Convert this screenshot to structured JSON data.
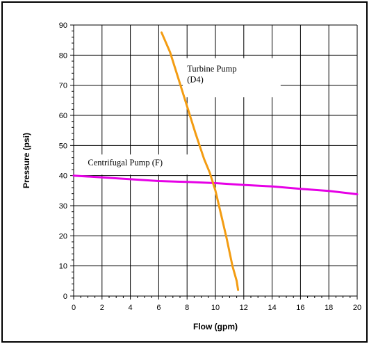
{
  "chart_data": {
    "type": "line",
    "title": "",
    "xlabel": "Flow (gpm)",
    "ylabel": "Pressure (psi)",
    "xlim": [
      0,
      20
    ],
    "ylim": [
      0,
      90
    ],
    "x_ticks": [
      0,
      2,
      4,
      6,
      8,
      10,
      12,
      14,
      16,
      18,
      20
    ],
    "y_ticks": [
      0,
      10,
      20,
      30,
      40,
      50,
      60,
      70,
      80,
      90
    ],
    "grid": true,
    "legend": "none",
    "series": [
      {
        "name": "Centrifugal Pump (F)",
        "color": "#e600e6",
        "x": [
          0,
          2,
          4,
          6,
          8,
          10,
          12,
          14,
          16,
          18,
          20
        ],
        "y": [
          40,
          39.4,
          38.8,
          38.2,
          37.9,
          37.5,
          36.9,
          36.4,
          35.6,
          34.9,
          33.8
        ]
      },
      {
        "name": "Turbine Pump\n(D4)",
        "color": "#f39c12",
        "x": [
          6.2,
          6.8,
          7.4,
          8.0,
          8.6,
          9.2,
          9.6,
          10.0,
          10.4,
          10.8,
          11.2,
          11.5,
          11.6
        ],
        "y": [
          87.5,
          81,
          72,
          63,
          54,
          45.5,
          41,
          35,
          27,
          19,
          10,
          5,
          2
        ]
      }
    ],
    "annotations": [
      {
        "series": 0,
        "text": "Centrifugal Pump (F)",
        "x": 1.0,
        "y": 43.4
      },
      {
        "series": 1,
        "text": "Turbine Pump",
        "x": 8.0,
        "y": 74.5
      },
      {
        "series": 1,
        "text": "(D4)",
        "x": 8.0,
        "y": 71.0
      }
    ]
  }
}
